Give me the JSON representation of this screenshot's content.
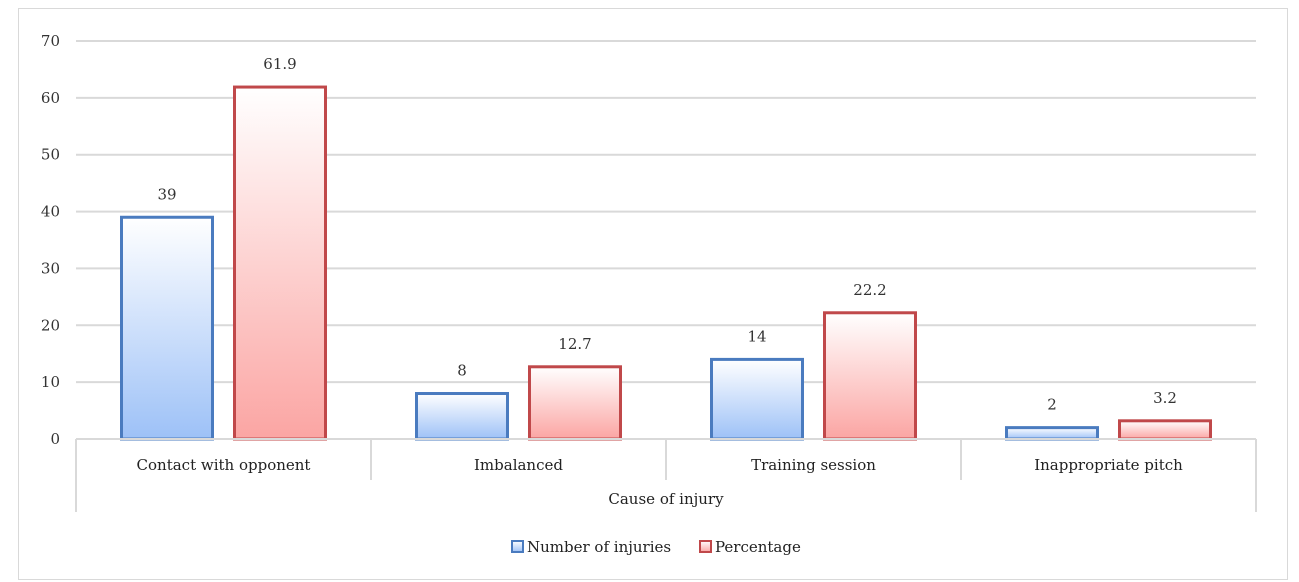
{
  "chart_data": {
    "type": "bar",
    "categories": [
      "Contact with opponent",
      "Imbalanced",
      "Training session",
      "Inappropriate pitch"
    ],
    "series": [
      {
        "name": "Number of injuries",
        "values": [
          39,
          8,
          14,
          2
        ],
        "labels": [
          "39",
          "8",
          "14",
          "2"
        ],
        "color": "#4a7bbf"
      },
      {
        "name": "Percentage",
        "values": [
          61.9,
          12.7,
          22.2,
          3.2
        ],
        "labels": [
          "61.9",
          "12.7",
          "22.2",
          "3.2"
        ],
        "color": "#c0484a"
      }
    ],
    "xlabel": "Cause of injury",
    "ylabel": "",
    "ylim": [
      0,
      70
    ],
    "yticks": [
      "0",
      "10",
      "20",
      "30",
      "40",
      "50",
      "60",
      "70"
    ],
    "grid": true,
    "legend_position": "bottom"
  }
}
